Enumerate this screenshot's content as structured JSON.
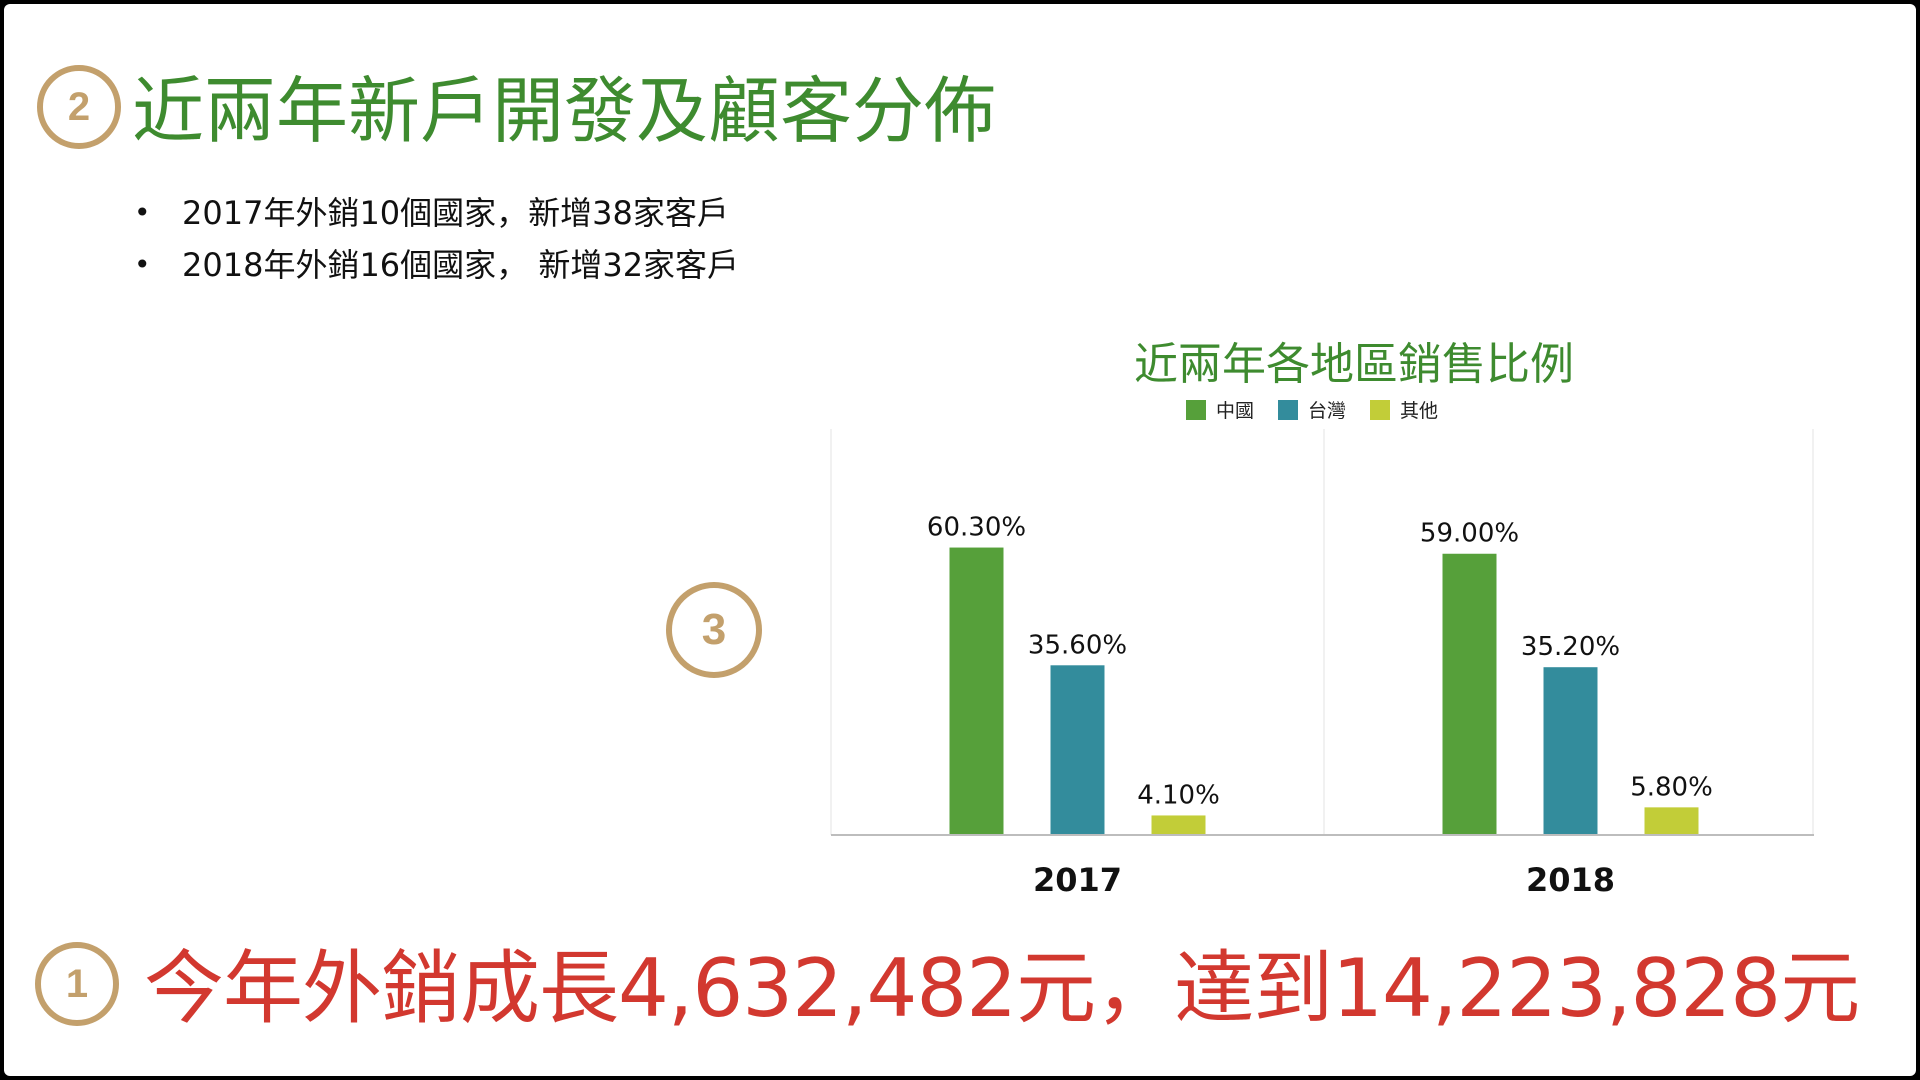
{
  "slide": {
    "badges": {
      "section2": "2",
      "section3": "3",
      "section1": "1"
    },
    "title": "近兩年新戶開發及顧客分佈",
    "bullets": [
      "2017年外銷10個國家，新增38家客戶",
      "2018年外銷16個國家， 新增32家客戶"
    ],
    "bullet_glyph": "•",
    "headline": "今年外銷成長4,632,482元，達到14,223,828元"
  },
  "chart_data": {
    "type": "bar",
    "title": "近兩年各地區銷售比例",
    "categories": [
      "2017",
      "2018"
    ],
    "series": [
      {
        "name": "中國",
        "color": "#56a03a",
        "values": [
          60.3,
          59.0
        ],
        "labels": [
          "60.30%",
          "59.00%"
        ]
      },
      {
        "name": "台灣",
        "color": "#338c9c",
        "values": [
          35.6,
          35.2
        ],
        "labels": [
          "35.60%",
          "35.20%"
        ]
      },
      {
        "name": "其他",
        "color": "#c2cd38",
        "values": [
          4.1,
          5.8
        ],
        "labels": [
          "4.10%",
          "5.80%"
        ]
      }
    ],
    "ylim": [
      0,
      70
    ],
    "legend": "top",
    "grid": false
  }
}
